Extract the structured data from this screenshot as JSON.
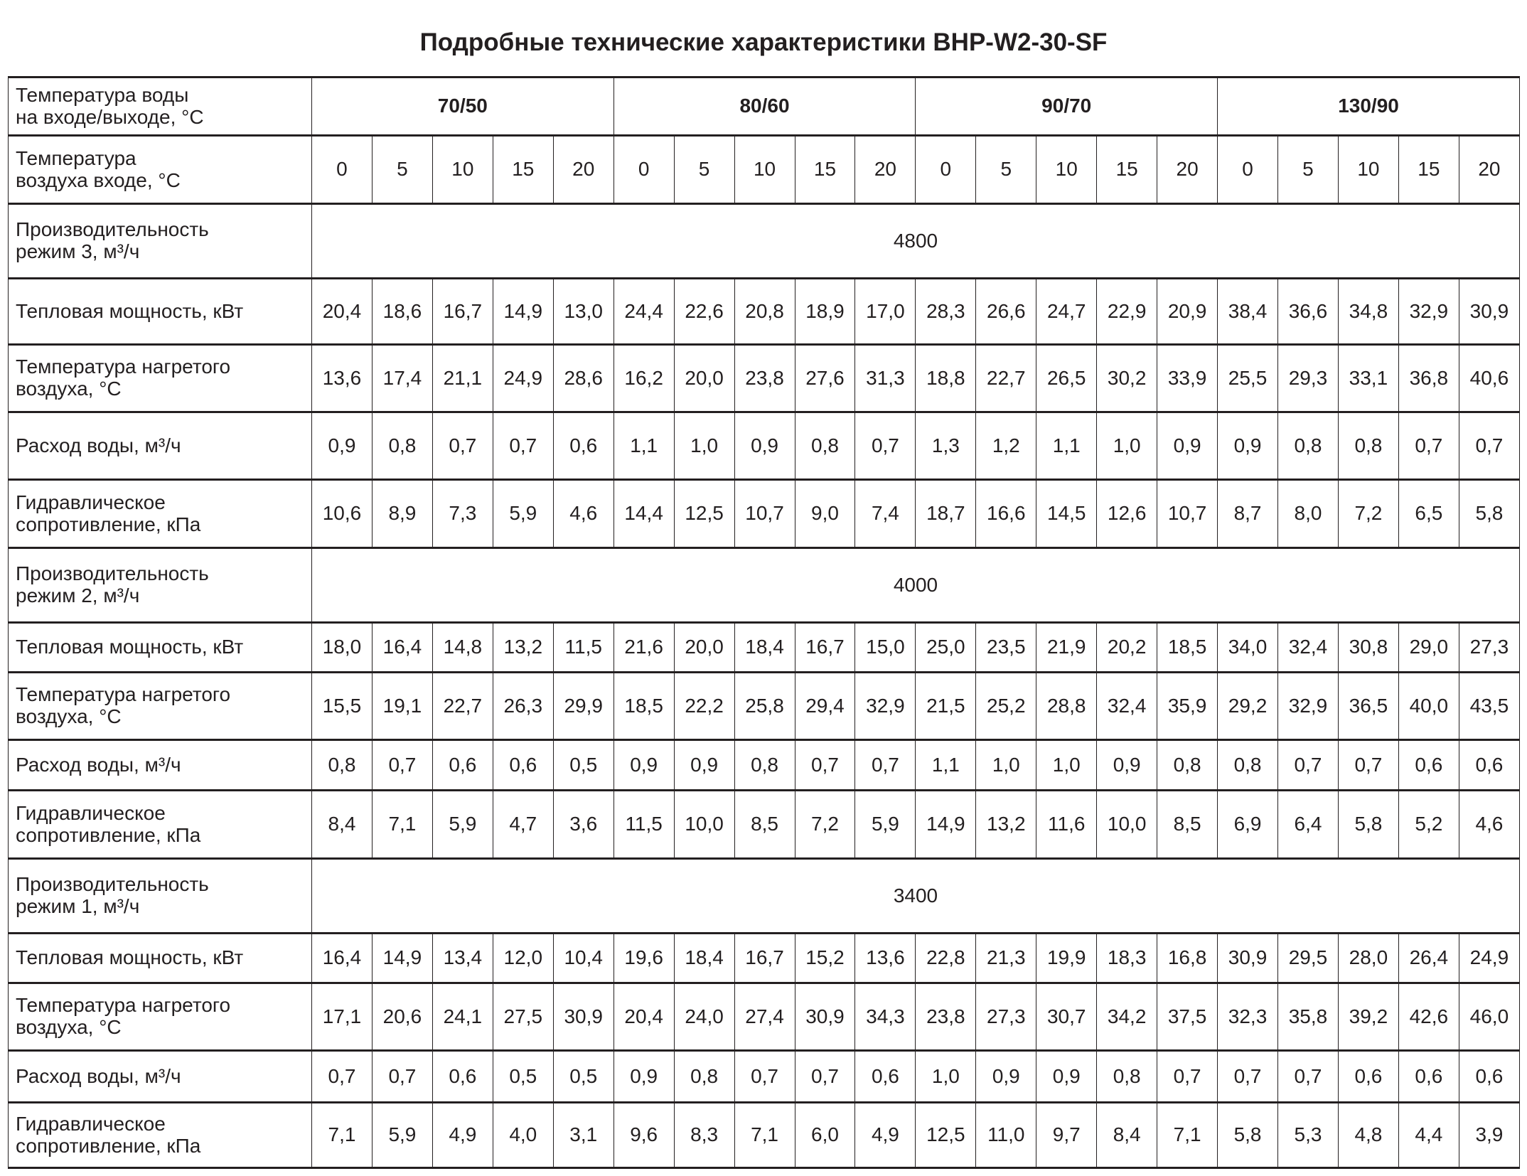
{
  "title": "Подробные технические характеристики BHP-W2-30-SF",
  "header": {
    "water_label_1": "Температура воды",
    "water_label_2": "на входе/выходе, °С",
    "water_groups": [
      "70/50",
      "80/60",
      "90/70",
      "130/90"
    ],
    "air_label_1": "Температура",
    "air_label_2": "воздуха входе, °С",
    "air_temps": [
      "0",
      "5",
      "10",
      "15",
      "20"
    ]
  },
  "sections": [
    {
      "flow_label_1": "Производительность",
      "flow_label_2": "режим 3, м³/ч",
      "flow_value": "4800",
      "rows": [
        {
          "label_1": "Тепловая мощность, кВт",
          "label_2": "",
          "values": [
            "20,4",
            "18,6",
            "16,7",
            "14,9",
            "13,0",
            "24,4",
            "22,6",
            "20,8",
            "18,9",
            "17,0",
            "28,3",
            "26,6",
            "24,7",
            "22,9",
            "20,9",
            "38,4",
            "36,6",
            "34,8",
            "32,9",
            "30,9"
          ]
        },
        {
          "label_1": "Температура нагретого",
          "label_2": "воздуха, °С",
          "values": [
            "13,6",
            "17,4",
            "21,1",
            "24,9",
            "28,6",
            "16,2",
            "20,0",
            "23,8",
            "27,6",
            "31,3",
            "18,8",
            "22,7",
            "26,5",
            "30,2",
            "33,9",
            "25,5",
            "29,3",
            "33,1",
            "36,8",
            "40,6"
          ]
        },
        {
          "label_1": "Расход воды, м³/ч",
          "label_2": "",
          "values": [
            "0,9",
            "0,8",
            "0,7",
            "0,7",
            "0,6",
            "1,1",
            "1,0",
            "0,9",
            "0,8",
            "0,7",
            "1,3",
            "1,2",
            "1,1",
            "1,0",
            "0,9",
            "0,9",
            "0,8",
            "0,8",
            "0,7",
            "0,7"
          ]
        },
        {
          "label_1": "Гидравлическое",
          "label_2": "сопротивление, кПа",
          "values": [
            "10,6",
            "8,9",
            "7,3",
            "5,9",
            "4,6",
            "14,4",
            "12,5",
            "10,7",
            "9,0",
            "7,4",
            "18,7",
            "16,6",
            "14,5",
            "12,6",
            "10,7",
            "8,7",
            "8,0",
            "7,2",
            "6,5",
            "5,8"
          ]
        }
      ]
    },
    {
      "flow_label_1": "Производительность",
      "flow_label_2": "режим 2, м³/ч",
      "flow_value": "4000",
      "rows": [
        {
          "label_1": "Тепловая мощность, кВт",
          "label_2": "",
          "values": [
            "18,0",
            "16,4",
            "14,8",
            "13,2",
            "11,5",
            "21,6",
            "20,0",
            "18,4",
            "16,7",
            "15,0",
            "25,0",
            "23,5",
            "21,9",
            "20,2",
            "18,5",
            "34,0",
            "32,4",
            "30,8",
            "29,0",
            "27,3"
          ]
        },
        {
          "label_1": "Температура нагретого",
          "label_2": "воздуха, °С",
          "values": [
            "15,5",
            "19,1",
            "22,7",
            "26,3",
            "29,9",
            "18,5",
            "22,2",
            "25,8",
            "29,4",
            "32,9",
            "21,5",
            "25,2",
            "28,8",
            "32,4",
            "35,9",
            "29,2",
            "32,9",
            "36,5",
            "40,0",
            "43,5"
          ]
        },
        {
          "label_1": "Расход воды, м³/ч",
          "label_2": "",
          "values": [
            "0,8",
            "0,7",
            "0,6",
            "0,6",
            "0,5",
            "0,9",
            "0,9",
            "0,8",
            "0,7",
            "0,7",
            "1,1",
            "1,0",
            "1,0",
            "0,9",
            "0,8",
            "0,8",
            "0,7",
            "0,7",
            "0,6",
            "0,6"
          ]
        },
        {
          "label_1": "Гидравлическое",
          "label_2": "сопротивление, кПа",
          "values": [
            "8,4",
            "7,1",
            "5,9",
            "4,7",
            "3,6",
            "11,5",
            "10,0",
            "8,5",
            "7,2",
            "5,9",
            "14,9",
            "13,2",
            "11,6",
            "10,0",
            "8,5",
            "6,9",
            "6,4",
            "5,8",
            "5,2",
            "4,6"
          ]
        }
      ]
    },
    {
      "flow_label_1": "Производительность",
      "flow_label_2": "режим 1, м³/ч",
      "flow_value": "3400",
      "rows": [
        {
          "label_1": "Тепловая мощность, кВт",
          "label_2": "",
          "values": [
            "16,4",
            "14,9",
            "13,4",
            "12,0",
            "10,4",
            "19,6",
            "18,4",
            "16,7",
            "15,2",
            "13,6",
            "22,8",
            "21,3",
            "19,9",
            "18,3",
            "16,8",
            "30,9",
            "29,5",
            "28,0",
            "26,4",
            "24,9"
          ]
        },
        {
          "label_1": "Температура нагретого",
          "label_2": "воздуха, °С",
          "values": [
            "17,1",
            "20,6",
            "24,1",
            "27,5",
            "30,9",
            "20,4",
            "24,0",
            "27,4",
            "30,9",
            "34,3",
            "23,8",
            "27,3",
            "30,7",
            "34,2",
            "37,5",
            "32,3",
            "35,8",
            "39,2",
            "42,6",
            "46,0"
          ]
        },
        {
          "label_1": "Расход воды, м³/ч",
          "label_2": "",
          "values": [
            "0,7",
            "0,7",
            "0,6",
            "0,5",
            "0,5",
            "0,9",
            "0,8",
            "0,7",
            "0,7",
            "0,6",
            "1,0",
            "0,9",
            "0,9",
            "0,8",
            "0,7",
            "0,7",
            "0,7",
            "0,6",
            "0,6",
            "0,6"
          ]
        },
        {
          "label_1": "Гидравлическое",
          "label_2": "сопротивление, кПа",
          "values": [
            "7,1",
            "5,9",
            "4,9",
            "4,0",
            "3,1",
            "9,6",
            "8,3",
            "7,1",
            "6,0",
            "4,9",
            "12,5",
            "11,0",
            "9,7",
            "8,4",
            "7,1",
            "5,8",
            "5,3",
            "4,8",
            "4,4",
            "3,9"
          ]
        }
      ]
    }
  ]
}
